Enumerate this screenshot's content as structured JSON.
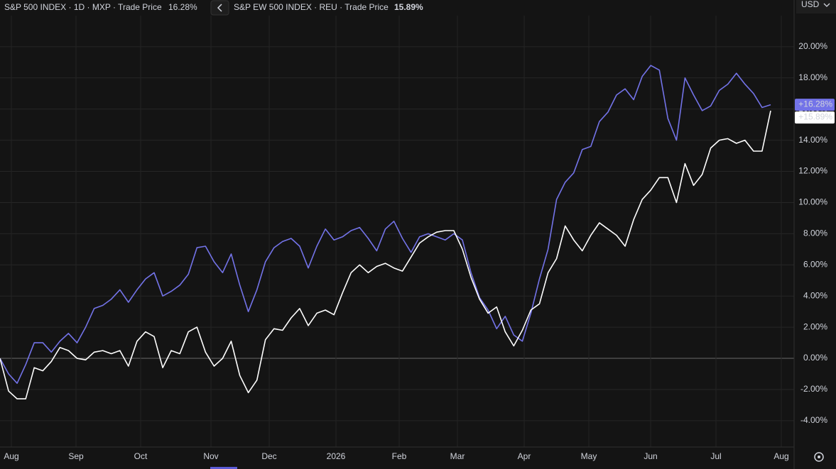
{
  "chart_data": {
    "type": "line",
    "currency": "USD",
    "xticks": [
      "Aug",
      "Sep",
      "Oct",
      "Nov",
      "Dec",
      "2026",
      "Feb",
      "Mar",
      "Apr",
      "May",
      "Jun",
      "Jul",
      "Aug"
    ],
    "ylim": [
      -5.69,
      23.0
    ],
    "yticks": [
      {
        "value": -4,
        "label": "-4.00%"
      },
      {
        "value": -2,
        "label": "-2.00%"
      },
      {
        "value": 0,
        "label": "0.00%"
      },
      {
        "value": 2,
        "label": "2.00%"
      },
      {
        "value": 4,
        "label": "4.00%"
      },
      {
        "value": 6,
        "label": "6.00%"
      },
      {
        "value": 8,
        "label": "8.00%"
      },
      {
        "value": 10,
        "label": "10.00%"
      },
      {
        "value": 12,
        "label": "12.00%"
      },
      {
        "value": 14,
        "label": "14.00%"
      },
      {
        "value": 16,
        "label": "16.00%"
      },
      {
        "value": 18,
        "label": "18.00%"
      },
      {
        "value": 20,
        "label": "20.00%"
      }
    ],
    "grid": true,
    "series": [
      {
        "name": "S&P 500 INDEX · 1D · MXP · Trade Price",
        "color": "#7373e8",
        "last_label": "16.28%",
        "last_axis_label": "+16.28%",
        "values": [
          0.0,
          -1.0,
          -1.6,
          -0.4,
          1.0,
          1.0,
          0.4,
          1.1,
          1.6,
          1.0,
          2.0,
          3.2,
          3.4,
          3.8,
          4.4,
          3.6,
          4.4,
          5.1,
          5.5,
          4.0,
          4.3,
          4.7,
          5.4,
          7.1,
          7.2,
          6.2,
          5.5,
          6.7,
          4.7,
          3.0,
          4.4,
          6.2,
          7.1,
          7.5,
          7.7,
          7.2,
          5.8,
          7.2,
          8.3,
          7.6,
          7.8,
          8.2,
          8.4,
          7.7,
          6.9,
          8.3,
          8.8,
          7.7,
          6.8,
          7.8,
          8.0,
          7.8,
          7.6,
          8.0,
          7.6,
          5.5,
          3.9,
          3.1,
          1.9,
          2.7,
          1.5,
          1.1,
          2.9,
          5.1,
          7.0,
          10.2,
          11.3,
          11.9,
          13.4,
          13.6,
          15.2,
          15.8,
          16.9,
          17.3,
          16.6,
          18.1,
          18.8,
          18.5,
          15.4,
          14.0,
          18.0,
          16.9,
          15.9,
          16.2,
          17.2,
          17.6,
          18.3,
          17.6,
          17.0,
          16.1,
          16.28
        ]
      },
      {
        "name": "S&P EW 500 INDEX · REU · Trade Price",
        "color": "#ffffff",
        "last_label": "15.89%",
        "last_axis_label": "+15.89%",
        "values": [
          0.0,
          -2.1,
          -2.6,
          -2.6,
          -0.6,
          -0.8,
          -0.2,
          0.7,
          0.5,
          0.0,
          -0.1,
          0.4,
          0.5,
          0.3,
          0.5,
          -0.5,
          1.1,
          1.7,
          1.4,
          -0.6,
          0.5,
          0.3,
          1.7,
          2.0,
          0.4,
          -0.5,
          0.0,
          1.1,
          -1.1,
          -2.2,
          -1.4,
          1.2,
          1.9,
          1.8,
          2.6,
          3.2,
          2.1,
          2.9,
          3.1,
          2.8,
          4.2,
          5.5,
          6.0,
          5.5,
          5.9,
          6.1,
          5.8,
          5.6,
          6.5,
          7.4,
          7.8,
          8.1,
          8.2,
          8.2,
          7.0,
          5.2,
          3.8,
          2.9,
          3.3,
          1.7,
          0.8,
          1.8,
          3.1,
          3.5,
          5.5,
          6.4,
          8.5,
          7.6,
          6.9,
          7.9,
          8.7,
          8.3,
          7.9,
          7.2,
          8.9,
          10.2,
          10.8,
          11.6,
          11.6,
          10.0,
          12.5,
          11.1,
          11.8,
          13.5,
          14.0,
          14.1,
          13.8,
          14.0,
          13.3,
          13.3,
          15.89
        ]
      }
    ]
  }
}
